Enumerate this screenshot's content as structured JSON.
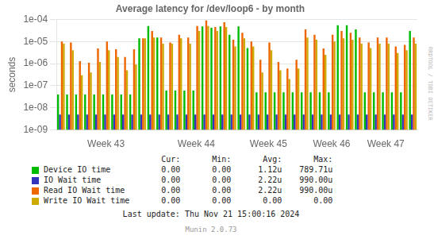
{
  "chart_data": {
    "type": "bar",
    "title": "Average latency for /dev/loop6 - by month",
    "y_label": "seconds",
    "log": "y",
    "grid": true,
    "legend": "bottom",
    "ylim": [
      1e-09,
      0.0001
    ],
    "yticks": [
      {
        "value": 1e-09,
        "label": "1e-09"
      },
      {
        "value": 1e-08,
        "label": "1e-08"
      },
      {
        "value": 1e-07,
        "label": "1e-07"
      },
      {
        "value": 1e-06,
        "label": "1e-06"
      },
      {
        "value": 1e-05,
        "label": "1e-05"
      },
      {
        "value": 0.0001,
        "label": "1e-04"
      }
    ],
    "categories": [
      null,
      null,
      null,
      null,
      null,
      "Week 43",
      null,
      null,
      null,
      null,
      null,
      null,
      null,
      null,
      null,
      "Week 44",
      null,
      null,
      null,
      null,
      null,
      null,
      null,
      "Week 45",
      null,
      null,
      null,
      null,
      null,
      null,
      "Week 46",
      null,
      null,
      null,
      null,
      null,
      "Week 47",
      null,
      null,
      null
    ],
    "legend_columns": [
      "Cur:",
      "Min:",
      "Avg:",
      "Max:"
    ],
    "series": [
      {
        "name": "Device IO time",
        "color": "#00bb00",
        "legend_values": [
          "0.00",
          "0.00",
          "1.12u",
          "789.71u"
        ],
        "values": [
          4e-08,
          4e-08,
          4e-08,
          4e-08,
          4e-08,
          4e-08,
          4e-08,
          4e-08,
          4e-08,
          1.4e-05,
          5e-05,
          1.5e-05,
          6e-08,
          6e-08,
          6e-08,
          6e-08,
          4.8e-05,
          4.2e-05,
          4.8e-05,
          2e-05,
          4.8e-05,
          5e-06,
          5e-08,
          5e-08,
          5e-08,
          5e-08,
          5e-08,
          5e-08,
          5e-08,
          5e-08,
          5e-08,
          5.5e-05,
          5.5e-05,
          3.5e-05,
          5e-08,
          5e-08,
          5e-08,
          5e-08,
          5e-08,
          3e-05
        ]
      },
      {
        "name": "IO Wait time",
        "color": "#3333bb",
        "legend_values": [
          "0.00",
          "0.00",
          "2.22u",
          "990.00u"
        ],
        "values": [
          5e-09,
          5e-09,
          5e-09,
          5e-09,
          5e-09,
          5e-09,
          5e-09,
          5e-09,
          5e-09,
          5e-09,
          5e-09,
          5e-09,
          5e-09,
          5e-09,
          5e-09,
          5e-09,
          5e-09,
          5e-09,
          5e-09,
          5e-09,
          5e-09,
          5e-09,
          5e-09,
          5e-09,
          5e-09,
          5e-09,
          5e-09,
          5e-09,
          5e-09,
          5e-09,
          5e-09,
          5e-09,
          5e-09,
          5e-09,
          5e-09,
          5e-09,
          5e-09,
          5e-09,
          5e-09,
          5e-09
        ]
      },
      {
        "name": "Read IO Wait time",
        "color": "#ee6600",
        "legend_values": [
          "0.00",
          "0.00",
          "2.22u",
          "990.00u"
        ],
        "values": [
          1e-05,
          9e-06,
          1.3e-06,
          1.1e-06,
          4.8e-06,
          1e-05,
          4.5e-06,
          2e-06,
          4.5e-06,
          1.4e-05,
          3e-05,
          1.5e-05,
          9e-06,
          2e-05,
          1.5e-05,
          5e-05,
          9e-05,
          4.5e-05,
          7.5e-05,
          1.2e-05,
          2.5e-05,
          1e-05,
          1.5e-06,
          9e-06,
          1.2e-06,
          6e-07,
          1.5e-06,
          3.5e-05,
          2e-05,
          4.8e-06,
          2e-05,
          3e-05,
          2.5e-05,
          1.5e-05,
          9e-06,
          1.5e-05,
          1.5e-05,
          6e-06,
          7e-06,
          1.5e-05
        ]
      },
      {
        "name": "Write IO Wait time",
        "color": "#ccaa00",
        "legend_values": [
          "0.00",
          "0.00",
          "0.00",
          "0.00"
        ],
        "values": [
          8e-06,
          4e-06,
          3e-07,
          4e-07,
          1.2e-06,
          4e-06,
          2e-06,
          5e-07,
          9e-07,
          1.4e-05,
          1.5e-05,
          8e-06,
          8e-06,
          1.4e-05,
          8e-06,
          3e-05,
          5e-05,
          3e-05,
          4.5e-05,
          6e-06,
          1.4e-05,
          6e-06,
          4e-07,
          4e-06,
          5e-07,
          2e-07,
          6e-07,
          1.5e-05,
          1.2e-05,
          2.5e-06,
          1e-05,
          1.4e-05,
          1.2e-05,
          8e-06,
          5e-06,
          8e-06,
          8e-06,
          3e-06,
          4e-06,
          8e-06
        ]
      }
    ],
    "annotations": [
      "Last update: Thu Nov 21 15:00:16 2024",
      "Munin 2.0.73",
      "RRDTOOL / TOBI OETIKER"
    ]
  }
}
